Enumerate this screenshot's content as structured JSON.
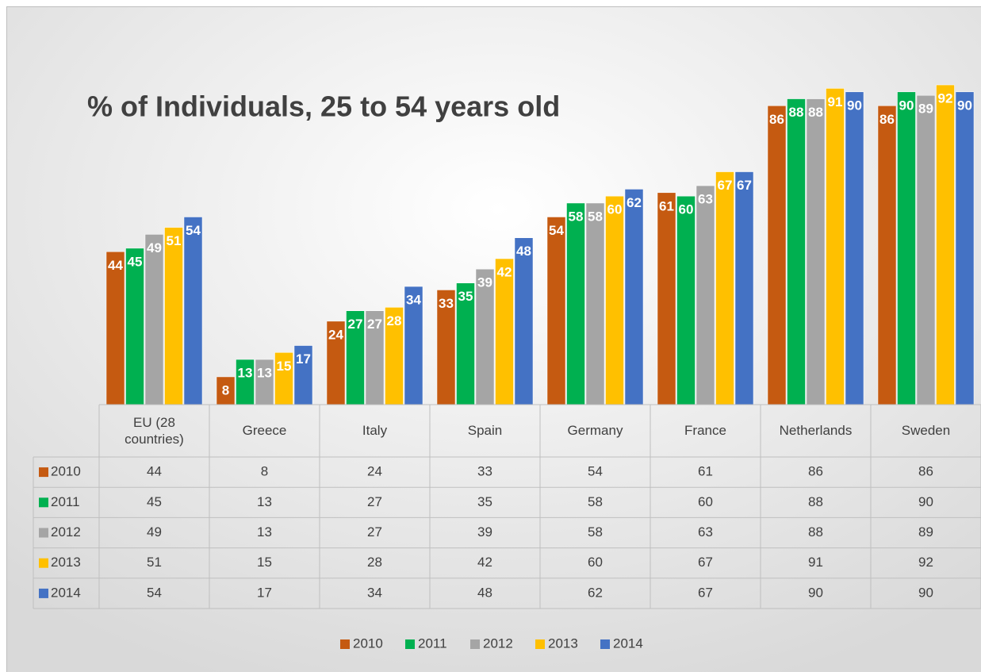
{
  "chart_data": {
    "type": "bar",
    "title": "% of Individuals, 25 to 54 years old",
    "categories": [
      "EU (28 countries)",
      "Greece",
      "Italy",
      "Spain",
      "Germany",
      "France",
      "Netherlands",
      "Sweden"
    ],
    "series": [
      {
        "name": "2010",
        "color": "#c55a11",
        "values": [
          44,
          8,
          24,
          33,
          54,
          61,
          86,
          86
        ]
      },
      {
        "name": "2011",
        "color": "#00b050",
        "values": [
          45,
          13,
          27,
          35,
          58,
          60,
          88,
          90
        ]
      },
      {
        "name": "2012",
        "color": "#a5a5a5",
        "values": [
          49,
          13,
          27,
          39,
          58,
          63,
          88,
          89
        ]
      },
      {
        "name": "2013",
        "color": "#ffc000",
        "values": [
          51,
          15,
          28,
          42,
          60,
          67,
          91,
          92
        ]
      },
      {
        "name": "2014",
        "color": "#4472c4",
        "values": [
          54,
          17,
          34,
          48,
          62,
          67,
          90,
          90
        ]
      }
    ],
    "ylim": [
      0,
      100
    ],
    "legend": "bottom",
    "data_table": true
  }
}
